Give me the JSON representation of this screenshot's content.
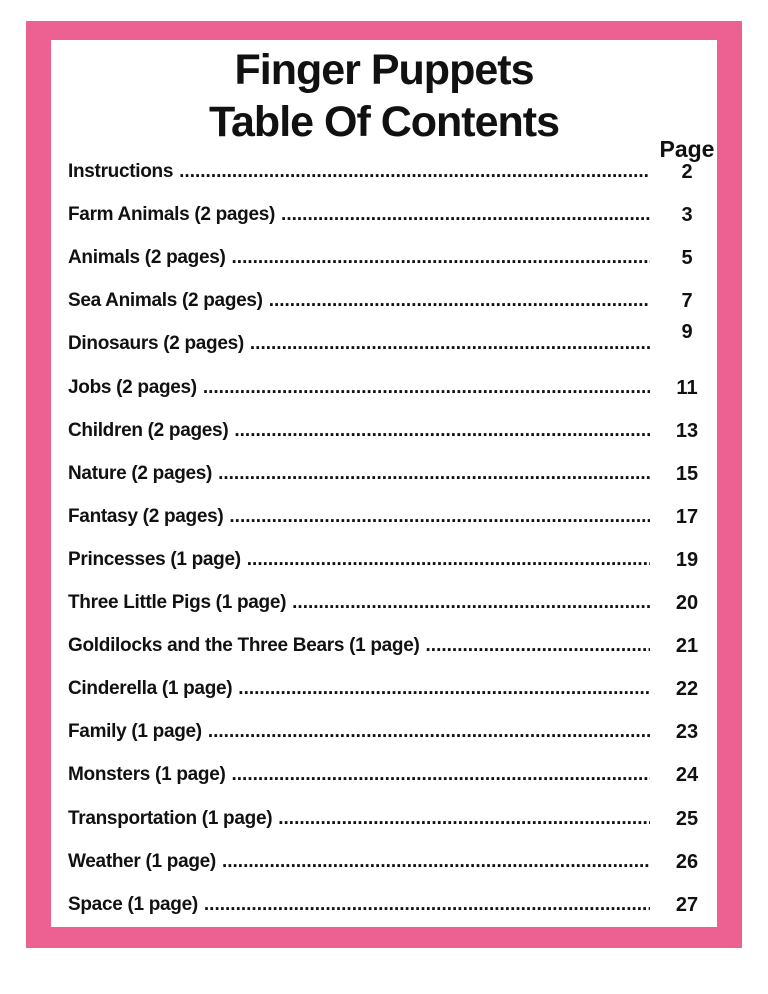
{
  "page": {
    "background": "#ffffff",
    "frame_color": "#ec6191",
    "text_color": "#111111",
    "title_line1": "Finger Puppets",
    "title_line2": "Table Of Contents",
    "page_column_header": "Page"
  },
  "toc": {
    "items": [
      {
        "label": "Instructions",
        "page": "2"
      },
      {
        "label": "Farm Animals (2 pages)",
        "page": "3"
      },
      {
        "label": "Animals (2 pages)",
        "page": "5"
      },
      {
        "label": "Sea Animals (2 pages)",
        "page": "7"
      },
      {
        "label": "Dinosaurs (2 pages)",
        "page": "9",
        "page_raised": true
      },
      {
        "label": "Jobs (2 pages)",
        "page": "11"
      },
      {
        "label": "Children (2 pages)",
        "page": "13"
      },
      {
        "label": "Nature (2 pages)",
        "page": "15"
      },
      {
        "label": "Fantasy (2 pages)",
        "page": "17"
      },
      {
        "label": "Princesses (1 page)",
        "page": "19"
      },
      {
        "label": "Three Little Pigs (1 page)",
        "page": "20"
      },
      {
        "label": "Goldilocks and the Three Bears (1 page)",
        "page": "21"
      },
      {
        "label": "Cinderella (1 page)",
        "page": "22"
      },
      {
        "label": "Family (1 page)",
        "page": "23"
      },
      {
        "label": "Monsters (1 page)",
        "page": "24"
      },
      {
        "label": "Transportation (1 page)",
        "page": "25"
      },
      {
        "label": "Weather (1 page)",
        "page": "26"
      },
      {
        "label": "Space (1 page)",
        "page": "27"
      }
    ]
  }
}
